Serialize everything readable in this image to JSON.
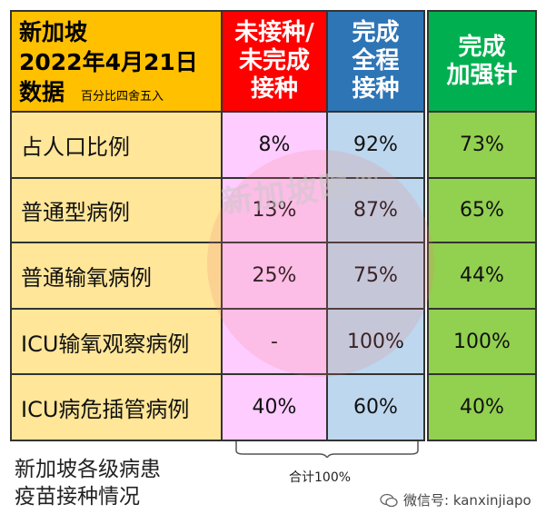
{
  "header": {
    "title_line1": "新加坡",
    "title_line2": "2022年4月21日",
    "title_line3": "数据",
    "note": "百分比四舍五入",
    "col1": "未接种/\n未完成\n接种",
    "col2": "完成\n全程\n接种",
    "col3": "完成\n加强针"
  },
  "rows": [
    {
      "label": "占人口比例",
      "c1": "8%",
      "c2": "92%",
      "c3": "73%"
    },
    {
      "label": "普通型病例",
      "c1": "13%",
      "c2": "87%",
      "c3": "65%"
    },
    {
      "label": "普通输氧病例",
      "c1": "25%",
      "c2": "75%",
      "c3": "44%"
    },
    {
      "label": "ICU输氧观察病例",
      "c1": "-",
      "c2": "100%",
      "c3": "100%"
    },
    {
      "label": "ICU病危插管病例",
      "c1": "40%",
      "c2": "60%",
      "c3": "40%"
    }
  ],
  "caption_line1": "新加坡各级病患",
  "caption_line2": "疫苗接种情况",
  "total": "合计100%",
  "watermark": "新加坡眼®",
  "footer": "微信号: kanxinjiapo",
  "colors": {
    "unvaccinated": "#ff0000",
    "full": "#2e75b6",
    "booster": "#00b050",
    "label_bg": "#ffe699",
    "header_bg": "#ffc000"
  }
}
